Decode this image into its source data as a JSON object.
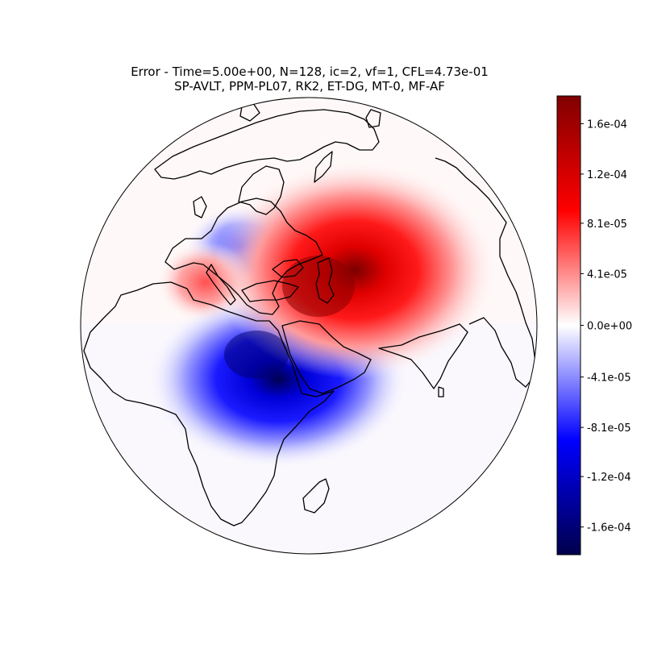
{
  "title": {
    "line1": "Error - Time=5.00e+00, N=128, ic=2, vf=1, CFL=4.73e-01",
    "line2": "SP-AVLT, PPM-PL07, RK2, ET-DG, MT-0, MF-AF"
  },
  "colorbar": {
    "colormap": "seismic",
    "min": -0.000182,
    "max": 0.000182,
    "ticks": [
      {
        "value": 0.00016,
        "label": "1.6e-04"
      },
      {
        "value": 0.00012,
        "label": "1.2e-04"
      },
      {
        "value": 8.1e-05,
        "label": "8.1e-05"
      },
      {
        "value": 4.1e-05,
        "label": "4.1e-05"
      },
      {
        "value": 0.0,
        "label": "0.0e+00"
      },
      {
        "value": -4.1e-05,
        "label": "-4.1e-05"
      },
      {
        "value": -8.1e-05,
        "label": "-8.1e-05"
      },
      {
        "value": -0.00012,
        "label": "-1.2e-04"
      },
      {
        "value": -0.00016,
        "label": "-1.6e-04"
      }
    ],
    "colors": {
      "low": "#00004c",
      "mid_low": "#0000ff",
      "zero": "#ffffff",
      "mid_high": "#ff0000",
      "high": "#800000"
    }
  },
  "map": {
    "projection": "orthographic",
    "coastlines": "black",
    "error_field_features": [
      {
        "region": "Caspian / Central Asia",
        "sign": "positive",
        "peak": 0.000175
      },
      {
        "region": "Arabian Peninsula / Horn of Africa",
        "sign": "negative",
        "peak": -0.000175
      },
      {
        "region": "Mediterranean (Italy / Greece)",
        "sign": "positive",
        "peak": 6e-05
      },
      {
        "region": "Central Europe",
        "sign": "negative",
        "peak": -7e-05
      }
    ]
  }
}
